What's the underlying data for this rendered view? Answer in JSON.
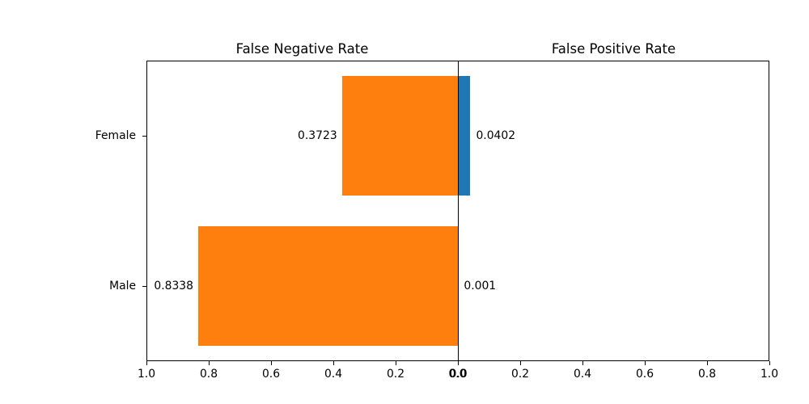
{
  "figure": {
    "background": "#ffffff",
    "axis_color": "#000000",
    "text_color": "#000000"
  },
  "chart_data": {
    "type": "bar",
    "variant": "diverging-horizontal",
    "title_left": "False Negative Rate",
    "title_right": "False Positive Rate",
    "categories": [
      "Female",
      "Male"
    ],
    "series": [
      {
        "name": "False Negative Rate",
        "side": "left",
        "color": "#ff7f0e",
        "values": [
          0.3723,
          0.8338
        ],
        "value_labels": [
          "0.3723",
          "0.8338"
        ]
      },
      {
        "name": "False Positive Rate",
        "side": "right",
        "color": "#1f77b4",
        "values": [
          0.0402,
          0.001
        ],
        "value_labels": [
          "0.0402",
          "0.001"
        ]
      }
    ],
    "x_axis_left": {
      "tick_labels": [
        "1.0",
        "0.8",
        "0.6",
        "0.4",
        "0.2",
        "0.0"
      ],
      "tick_values": [
        1.0,
        0.8,
        0.6,
        0.4,
        0.2,
        0.0
      ]
    },
    "x_axis_right": {
      "tick_labels": [
        "0.0",
        "0.2",
        "0.4",
        "0.6",
        "0.8",
        "1.0"
      ],
      "tick_values": [
        0.0,
        0.2,
        0.4,
        0.6,
        0.8,
        1.0
      ]
    },
    "xlim": [
      0,
      1
    ],
    "grid": false,
    "legend": false,
    "bar_height_fraction": 0.8
  }
}
